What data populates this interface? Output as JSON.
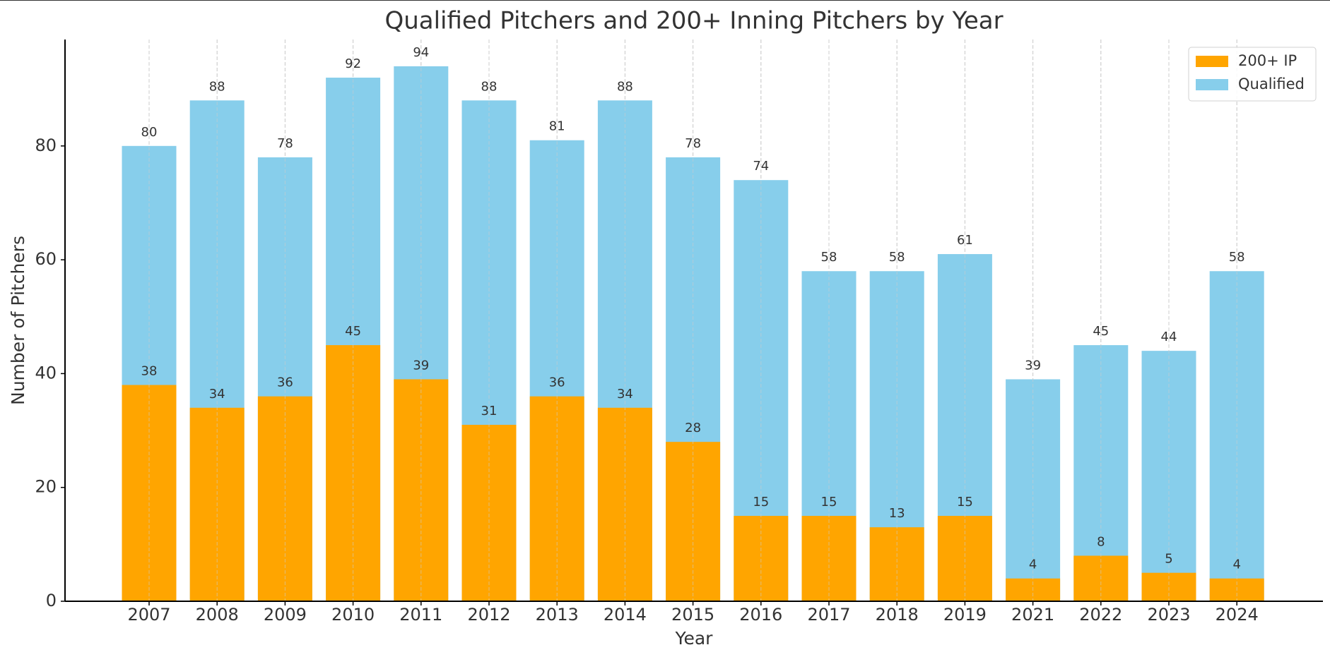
{
  "chart_data": {
    "type": "bar",
    "mode": "overlay",
    "title": "Qualified Pitchers and 200+ Inning Pitchers by Year",
    "x_label": "Year",
    "y_label": "Number of Pitchers",
    "categories": [
      "2007",
      "2008",
      "2009",
      "2010",
      "2011",
      "2012",
      "2013",
      "2014",
      "2015",
      "2016",
      "2017",
      "2018",
      "2019",
      "2021",
      "2022",
      "2023",
      "2024"
    ],
    "series": [
      {
        "name": "200+ IP",
        "color": "#ffa500",
        "values": [
          38,
          34,
          36,
          45,
          39,
          31,
          36,
          34,
          28,
          15,
          15,
          13,
          15,
          4,
          8,
          5,
          4
        ]
      },
      {
        "name": "Qualified",
        "color": "#87ceeb",
        "values": [
          80,
          88,
          78,
          92,
          94,
          88,
          81,
          88,
          78,
          74,
          58,
          58,
          61,
          39,
          45,
          44,
          58
        ]
      }
    ],
    "ylim": [
      0,
      98.7
    ],
    "yticks": [
      0,
      20,
      40,
      60,
      80
    ],
    "grid": "x",
    "legend": "upper right"
  }
}
